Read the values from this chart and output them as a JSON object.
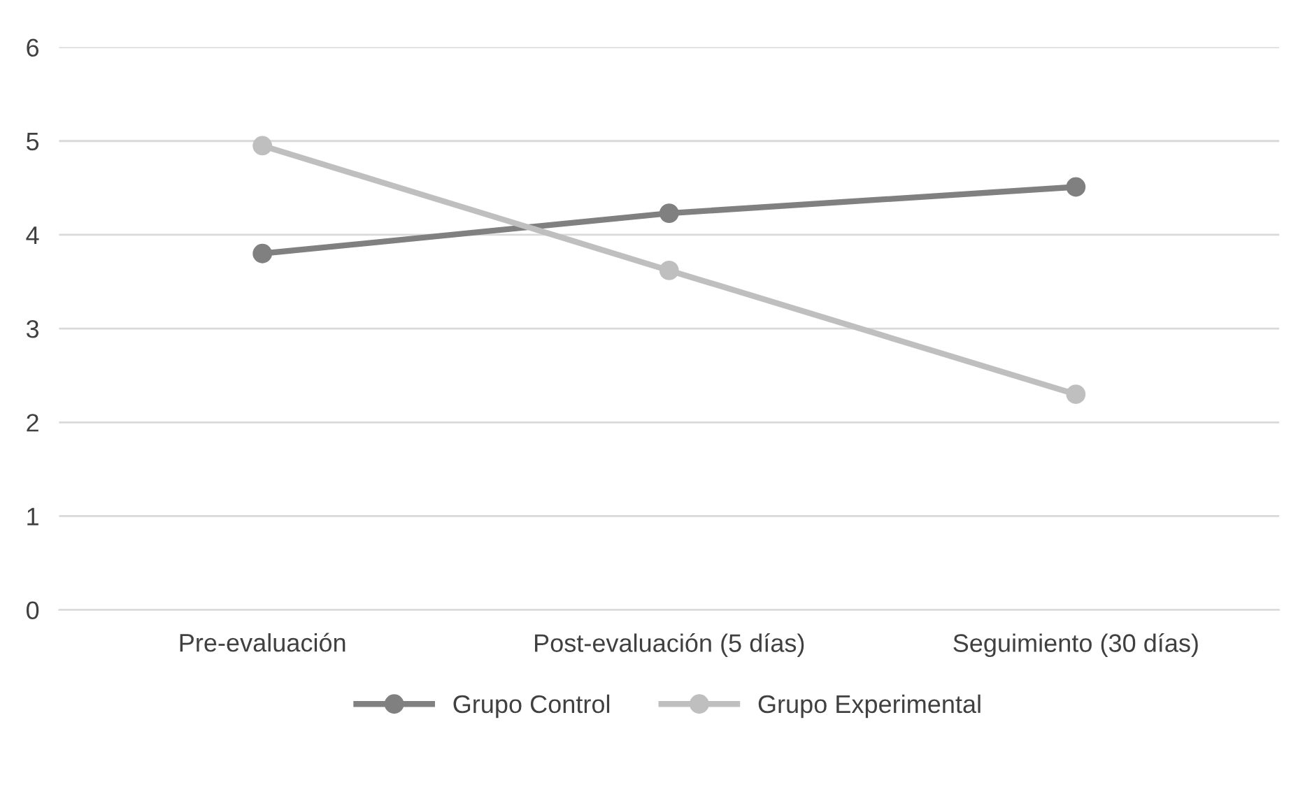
{
  "chart_data": {
    "type": "line",
    "categories": [
      "Pre-evaluación",
      "Post-evaluación (5 días)",
      "Seguimiento (30 días)"
    ],
    "series": [
      {
        "name": "Grupo Control",
        "color": "#808080",
        "values": [
          3.8,
          4.23,
          4.51
        ]
      },
      {
        "name": "Grupo Experimental",
        "color": "#bfbfbf",
        "values": [
          4.95,
          3.62,
          2.3
        ]
      }
    ],
    "ylim": [
      0,
      6
    ],
    "yticks": [
      0,
      1,
      2,
      3,
      4,
      5,
      6
    ],
    "grid": "y",
    "legend": "bottom",
    "marker": "circle",
    "line_style": "solid"
  }
}
